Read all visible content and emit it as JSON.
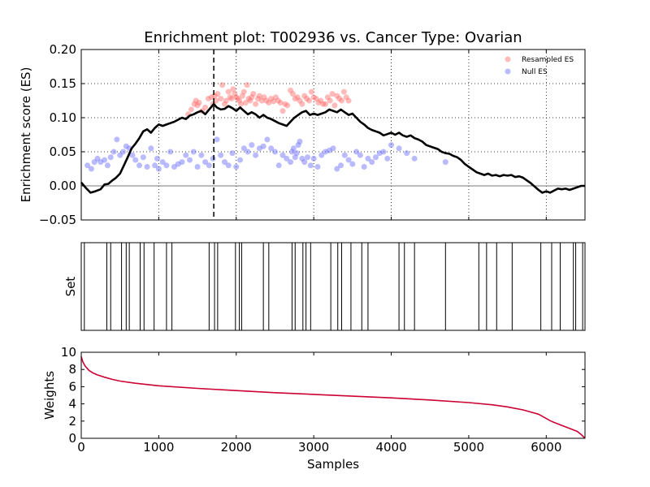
{
  "chart_data": [
    {
      "type": "line",
      "panel": "enrichment",
      "title": "Enrichment plot: T002936 vs. Cancer Type: Ovarian",
      "ylabel": "Enrichment score (ES)",
      "xlabel": "",
      "xlim": [
        0,
        6500
      ],
      "ylim": [
        -0.05,
        0.2
      ],
      "xticks": [
        0,
        1000,
        2000,
        3000,
        4000,
        5000,
        6000
      ],
      "yticks": [
        -0.05,
        0.0,
        0.05,
        0.1,
        0.15,
        0.2
      ],
      "ytick_labels": [
        "−0.05",
        "0.00",
        "0.05",
        "0.10",
        "0.15",
        "0.20"
      ],
      "grid": true,
      "legend_position": "top-right",
      "peak_marker_x": 1710,
      "zero_line": 0,
      "series": [
        {
          "name": "",
          "kind": "line",
          "color": "#000000",
          "x": [
            0,
            60,
            120,
            180,
            250,
            300,
            350,
            400,
            450,
            500,
            550,
            600,
            650,
            700,
            750,
            800,
            850,
            900,
            950,
            1000,
            1050,
            1100,
            1150,
            1200,
            1250,
            1300,
            1350,
            1400,
            1450,
            1500,
            1550,
            1600,
            1650,
            1710,
            1750,
            1800,
            1850,
            1900,
            1950,
            2000,
            2050,
            2100,
            2150,
            2200,
            2250,
            2300,
            2350,
            2400,
            2450,
            2500,
            2550,
            2600,
            2650,
            2700,
            2750,
            2800,
            2850,
            2900,
            2950,
            3000,
            3050,
            3100,
            3150,
            3200,
            3250,
            3300,
            3350,
            3400,
            3450,
            3500,
            3550,
            3600,
            3650,
            3700,
            3750,
            3800,
            3850,
            3900,
            3950,
            4000,
            4050,
            4100,
            4150,
            4200,
            4250,
            4300,
            4350,
            4400,
            4450,
            4500,
            4550,
            4600,
            4650,
            4700,
            4750,
            4800,
            4850,
            4900,
            4950,
            5000,
            5050,
            5100,
            5150,
            5200,
            5250,
            5300,
            5350,
            5400,
            5450,
            5500,
            5550,
            5600,
            5650,
            5700,
            5750,
            5800,
            5850,
            5900,
            5950,
            6000,
            6050,
            6100,
            6150,
            6200,
            6250,
            6300,
            6350,
            6400,
            6450,
            6500
          ],
          "values": [
            0.005,
            -0.003,
            -0.01,
            -0.008,
            -0.005,
            0.002,
            0.003,
            0.008,
            0.012,
            0.018,
            0.03,
            0.042,
            0.055,
            0.062,
            0.07,
            0.08,
            0.083,
            0.078,
            0.085,
            0.09,
            0.088,
            0.09,
            0.092,
            0.094,
            0.097,
            0.1,
            0.098,
            0.103,
            0.105,
            0.108,
            0.11,
            0.105,
            0.112,
            0.12,
            0.115,
            0.112,
            0.113,
            0.117,
            0.114,
            0.11,
            0.115,
            0.11,
            0.105,
            0.108,
            0.105,
            0.1,
            0.104,
            0.1,
            0.098,
            0.095,
            0.092,
            0.09,
            0.088,
            0.094,
            0.1,
            0.104,
            0.108,
            0.11,
            0.104,
            0.106,
            0.104,
            0.106,
            0.108,
            0.112,
            0.11,
            0.108,
            0.112,
            0.108,
            0.104,
            0.106,
            0.1,
            0.094,
            0.09,
            0.085,
            0.082,
            0.08,
            0.078,
            0.074,
            0.076,
            0.078,
            0.075,
            0.078,
            0.074,
            0.072,
            0.074,
            0.07,
            0.068,
            0.065,
            0.06,
            0.058,
            0.056,
            0.054,
            0.05,
            0.048,
            0.047,
            0.044,
            0.042,
            0.038,
            0.032,
            0.028,
            0.024,
            0.02,
            0.018,
            0.016,
            0.018,
            0.015,
            0.016,
            0.014,
            0.016,
            0.015,
            0.016,
            0.013,
            0.014,
            0.012,
            0.008,
            0.004,
            -0.001,
            -0.006,
            -0.01,
            -0.008,
            -0.01,
            -0.007,
            -0.004,
            -0.005,
            -0.004,
            -0.006,
            -0.004,
            -0.002,
            0.0,
            0.0
          ]
        },
        {
          "name": "Resampled ES",
          "kind": "scatter",
          "color": "#ff6666",
          "x": [
            1380,
            1420,
            1460,
            1480,
            1500,
            1520,
            1560,
            1600,
            1640,
            1680,
            1700,
            1720,
            1740,
            1760,
            1800,
            1820,
            1850,
            1870,
            1900,
            1920,
            1940,
            1960,
            1980,
            2000,
            2020,
            2040,
            2060,
            2080,
            2100,
            2120,
            2140,
            2160,
            2180,
            2200,
            2220,
            2250,
            2280,
            2300,
            2330,
            2360,
            2390,
            2420,
            2450,
            2480,
            2510,
            2540,
            2570,
            2600,
            2630,
            2660,
            2700,
            2730,
            2760,
            2790,
            2820,
            2850,
            2880,
            2910,
            2940,
            2970,
            3000,
            3030,
            3060,
            3090,
            3120,
            3150,
            3180,
            3210,
            3240,
            3270,
            3300,
            3330,
            3360,
            3390,
            3420,
            3450
          ],
          "values": [
            0.105,
            0.112,
            0.12,
            0.125,
            0.118,
            0.122,
            0.11,
            0.115,
            0.128,
            0.13,
            0.12,
            0.132,
            0.125,
            0.135,
            0.128,
            0.148,
            0.12,
            0.125,
            0.138,
            0.13,
            0.128,
            0.142,
            0.135,
            0.13,
            0.128,
            0.125,
            0.12,
            0.132,
            0.138,
            0.122,
            0.148,
            0.128,
            0.125,
            0.13,
            0.135,
            0.12,
            0.128,
            0.132,
            0.125,
            0.13,
            0.125,
            0.122,
            0.128,
            0.124,
            0.13,
            0.125,
            0.122,
            0.11,
            0.12,
            0.118,
            0.14,
            0.135,
            0.128,
            0.13,
            0.125,
            0.12,
            0.132,
            0.128,
            0.125,
            0.138,
            0.13,
            0.128,
            0.122,
            0.125,
            0.12,
            0.12,
            0.13,
            0.125,
            0.135,
            0.118,
            0.132,
            0.128,
            0.125,
            0.138,
            0.13,
            0.125
          ]
        },
        {
          "name": "Null ES",
          "kind": "scatter",
          "color": "#6666ff",
          "x": [
            80,
            130,
            170,
            210,
            250,
            300,
            340,
            380,
            420,
            460,
            500,
            540,
            580,
            620,
            660,
            700,
            750,
            800,
            850,
            900,
            950,
            980,
            1000,
            1050,
            1100,
            1150,
            1200,
            1250,
            1300,
            1350,
            1400,
            1450,
            1500,
            1550,
            1600,
            1650,
            1700,
            1750,
            1800,
            1850,
            1900,
            1950,
            2000,
            2050,
            2100,
            2150,
            2200,
            2250,
            2300,
            2350,
            2400,
            2450,
            2500,
            2550,
            2600,
            2650,
            2700,
            2720,
            2740,
            2760,
            2780,
            2800,
            2820,
            2850,
            2880,
            2920,
            2960,
            3000,
            3050,
            3100,
            3150,
            3200,
            3250,
            3300,
            3350,
            3400,
            3450,
            3500,
            3550,
            3600,
            3650,
            3700,
            3750,
            3800,
            3850,
            3900,
            3950,
            4000,
            4100,
            4200,
            4300,
            4700
          ],
          "values": [
            0.03,
            0.025,
            0.035,
            0.04,
            0.035,
            0.038,
            0.03,
            0.042,
            0.05,
            0.068,
            0.045,
            0.05,
            0.058,
            0.055,
            0.045,
            0.038,
            0.03,
            0.042,
            0.028,
            0.055,
            0.03,
            0.04,
            0.025,
            0.035,
            0.03,
            0.05,
            0.028,
            0.032,
            0.035,
            0.045,
            0.038,
            0.05,
            0.028,
            0.045,
            0.035,
            0.03,
            0.04,
            0.068,
            0.045,
            0.035,
            0.03,
            0.048,
            0.028,
            0.038,
            0.055,
            0.05,
            0.06,
            0.045,
            0.055,
            0.058,
            0.068,
            0.055,
            0.05,
            0.03,
            0.045,
            0.04,
            0.035,
            0.05,
            0.055,
            0.042,
            0.048,
            0.06,
            0.065,
            0.04,
            0.035,
            0.042,
            0.03,
            0.04,
            0.028,
            0.045,
            0.05,
            0.052,
            0.055,
            0.025,
            0.03,
            0.045,
            0.038,
            0.032,
            0.05,
            0.045,
            0.028,
            0.04,
            0.035,
            0.042,
            0.048,
            0.05,
            0.04,
            0.06,
            0.055,
            0.048,
            0.04,
            0.035
          ]
        }
      ]
    },
    {
      "type": "bar",
      "panel": "set",
      "ylabel": "Set",
      "xlim": [
        0,
        6500
      ],
      "grid": false,
      "hits": [
        40,
        330,
        380,
        520,
        580,
        620,
        760,
        810,
        940,
        1100,
        1170,
        1650,
        1720,
        1760,
        1990,
        2040,
        2070,
        2350,
        2420,
        2720,
        2760,
        2860,
        2900,
        2960,
        3220,
        3310,
        3360,
        3480,
        3620,
        3700,
        4100,
        4170,
        4300,
        4700,
        5130,
        5230,
        5360,
        5560,
        5930,
        6070,
        6180,
        6350,
        6380,
        6470
      ]
    },
    {
      "type": "line",
      "panel": "weights",
      "ylabel": "Weights",
      "xlabel": "Samples",
      "xlim": [
        0,
        6500
      ],
      "ylim": [
        0,
        10
      ],
      "xticks": [
        0,
        1000,
        2000,
        3000,
        4000,
        5000,
        6000
      ],
      "yticks": [
        0,
        2,
        4,
        6,
        8,
        10
      ],
      "grid": false,
      "series": [
        {
          "name": "",
          "color": "#cc0033",
          "x": [
            0,
            20,
            50,
            100,
            150,
            200,
            300,
            400,
            500,
            700,
            1000,
            1500,
            2000,
            2500,
            3000,
            3500,
            4000,
            4500,
            5000,
            5300,
            5500,
            5700,
            5900,
            6000,
            6050,
            6100,
            6200,
            6300,
            6400,
            6450,
            6500
          ],
          "values": [
            9.5,
            8.9,
            8.4,
            7.9,
            7.6,
            7.4,
            7.1,
            6.85,
            6.65,
            6.4,
            6.1,
            5.8,
            5.55,
            5.3,
            5.1,
            4.9,
            4.7,
            4.45,
            4.15,
            3.9,
            3.65,
            3.3,
            2.8,
            2.3,
            2.05,
            1.85,
            1.5,
            1.15,
            0.8,
            0.45,
            0.0
          ]
        }
      ]
    }
  ]
}
